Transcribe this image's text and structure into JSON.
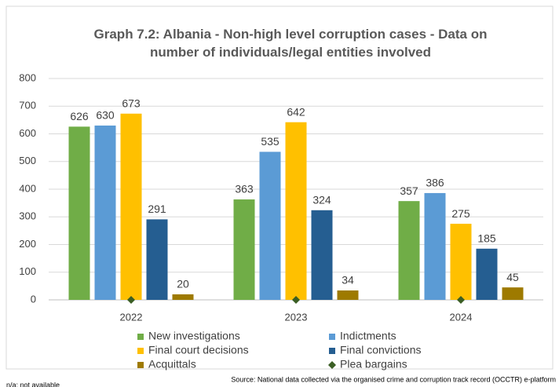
{
  "chart_data": {
    "type": "bar",
    "title": "Graph 7.2: Albania - Non-high level corruption cases - Data on number of individuals/legal entities involved",
    "categories": [
      "2022",
      "2023",
      "2024"
    ],
    "series": [
      {
        "name": "New investigations",
        "color": "#70ad47",
        "values": [
          626,
          363,
          357
        ]
      },
      {
        "name": "Indictments",
        "color": "#5b9bd5",
        "values": [
          630,
          535,
          386
        ]
      },
      {
        "name": "Final court decisions",
        "color": "#ffc000",
        "values": [
          673,
          642,
          275
        ]
      },
      {
        "name": "Final convictions",
        "color": "#255e91",
        "values": [
          291,
          324,
          185
        ]
      },
      {
        "name": "Acquittals",
        "color": "#9e7a00",
        "values": [
          20,
          34,
          45
        ]
      },
      {
        "name": "Plea bargains",
        "color": "#3a5e24",
        "type": "marker",
        "values": [
          0,
          0,
          0
        ]
      }
    ],
    "ylim": [
      0,
      800
    ],
    "yticks": [
      0,
      100,
      200,
      300,
      400,
      500,
      600,
      700,
      800
    ],
    "grid": true,
    "legend": "bottom",
    "footnote": "n/a: not available",
    "source": "Source: National data collected via the organised crime and corruption track record (OCCTR) e-platform"
  }
}
